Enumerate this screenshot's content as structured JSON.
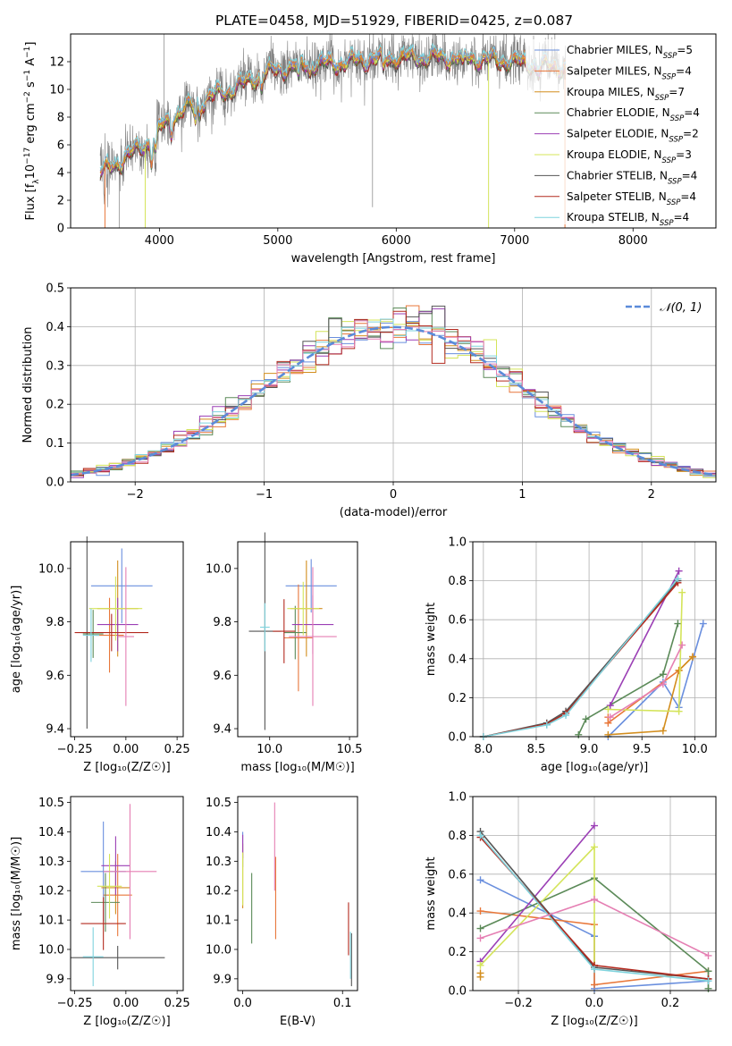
{
  "title": "PLATE=0458, MJD=51929, FIBERID=0425, z=0.087",
  "colors": {
    "axis": "#000000",
    "grid": "#b0b0b0",
    "spec_data": "#808080",
    "normal_curve": "#5b8bd9"
  },
  "series": [
    {
      "label": "Chabrier MILES, N",
      "sub": "SSP",
      "n": "5",
      "color": "#6a8fde"
    },
    {
      "label": "Salpeter MILES, N",
      "sub": "SSP",
      "n": "4",
      "color": "#e8773a"
    },
    {
      "label": "Kroupa MILES, N",
      "sub": "SSP",
      "n": "7",
      "color": "#d38e1e"
    },
    {
      "label": "Chabrier ELODIE, N",
      "sub": "SSP",
      "n": "4",
      "color": "#5b8a58"
    },
    {
      "label": "Salpeter ELODIE, N",
      "sub": "SSP",
      "n": "2",
      "color": "#9b3fb5"
    },
    {
      "label": "Kroupa ELODIE, N",
      "sub": "SSP",
      "n": "3",
      "color": "#d4e45a"
    },
    {
      "label": "Chabrier STELIB, N",
      "sub": "SSP",
      "n": "4",
      "color": "#555555"
    },
    {
      "label": "Salpeter STELIB, N",
      "sub": "SSP",
      "n": "4",
      "color": "#b32a1f"
    },
    {
      "label": "Kroupa STELIB, N",
      "sub": "SSP",
      "n": "4",
      "color": "#7fd3dd"
    }
  ],
  "extra_colors": {
    "pink": "#e57fb3"
  },
  "chart_data": [
    {
      "id": "spectrum",
      "type": "line",
      "xlabel": "wavelength [Angstrom, rest frame]",
      "ylabel_main": "Flux [f",
      "ylabel_rest": "10",
      "ylabel_unit": " erg cm",
      "ylabel_unit2": " s",
      "ylabel_unit3": " A",
      "xlim": [
        3250,
        8700
      ],
      "ylim": [
        0,
        14
      ],
      "xticks": [
        "4000",
        "5000",
        "6000",
        "7000",
        "8000"
      ],
      "yticks": [
        "0",
        "2",
        "4",
        "6",
        "8",
        "10",
        "12"
      ],
      "continuum": [
        [
          3500,
          4.0
        ],
        [
          3700,
          5.0
        ],
        [
          3900,
          6.2
        ],
        [
          4100,
          8.0
        ],
        [
          4300,
          9.0
        ],
        [
          4600,
          10.0
        ],
        [
          4900,
          11.2
        ],
        [
          5200,
          11.8
        ],
        [
          5500,
          11.9
        ],
        [
          5800,
          12.2
        ],
        [
          6100,
          12.3
        ],
        [
          6400,
          12.3
        ],
        [
          6700,
          12.2
        ],
        [
          7000,
          12.0
        ],
        [
          7200,
          11.8
        ],
        [
          7430,
          11.6
        ]
      ]
    },
    {
      "id": "residuals",
      "type": "histogram",
      "xlabel": "(data-model)/error",
      "ylabel": "Normed distribution",
      "xlim": [
        -2.5,
        2.5
      ],
      "ylim": [
        0,
        0.5
      ],
      "xticks": [
        "−2",
        "−1",
        "0",
        "1",
        "2"
      ],
      "yticks": [
        "0.0",
        "0.1",
        "0.2",
        "0.3",
        "0.4",
        "0.5"
      ],
      "legend": "𝒩(0, 1)",
      "bin_width": 0.1
    },
    {
      "id": "age_vs_Z",
      "type": "scatter",
      "xlabel": "Z [log₁₀(Z/Z☉)]",
      "ylabel": "age  [log₁₀(age/yr)]",
      "xlim": [
        -0.27,
        0.28
      ],
      "ylim": [
        9.37,
        10.1
      ],
      "xticks": [
        "−0.25",
        "0.00",
        "0.25"
      ],
      "yticks": [
        "9.4",
        "9.6",
        "9.8",
        "10.0"
      ],
      "points": [
        {
          "x": -0.02,
          "y": 9.935,
          "xerr": 0.15,
          "yerr": 0.14
        },
        {
          "x": -0.08,
          "y": 9.75,
          "xerr": 0.07,
          "yerr": 0.14
        },
        {
          "x": -0.04,
          "y": 9.85,
          "xerr": 0.1,
          "yerr": 0.18
        },
        {
          "x": -0.16,
          "y": 9.755,
          "xerr": 0.05,
          "yerr": 0.09
        },
        {
          "x": -0.04,
          "y": 9.79,
          "xerr": 0.1,
          "yerr": 0.1
        },
        {
          "x": -0.05,
          "y": 9.85,
          "xerr": 0.13,
          "yerr": 0.12
        },
        {
          "x": -0.19,
          "y": 9.76,
          "xerr": 0.03,
          "yerr": 0.36
        },
        {
          "x": -0.07,
          "y": 9.76,
          "xerr": 0.18,
          "yerr": 0.07
        },
        {
          "x": -0.17,
          "y": 9.75,
          "xerr": 0.04,
          "yerr": 0.1
        },
        {
          "x": 0.0,
          "y": 9.745,
          "xerr": 0.04,
          "yerr": 0.26
        }
      ]
    },
    {
      "id": "age_vs_mass",
      "type": "scatter",
      "xlabel": "mass [log₁₀(M/M☉)]",
      "ylabel": "",
      "xlim": [
        9.8,
        10.55
      ],
      "ylim": [
        9.37,
        10.1
      ],
      "xticks": [
        "10.0",
        "10.5"
      ],
      "yticks": [
        "9.4",
        "9.6",
        "9.8",
        "10.0"
      ],
      "points": [
        {
          "x": 10.26,
          "y": 9.935,
          "xerr": 0.16,
          "yerr": 0.1
        },
        {
          "x": 10.18,
          "y": 9.74,
          "xerr": 0.09,
          "yerr": 0.2
        },
        {
          "x": 10.23,
          "y": 9.85,
          "xerr": 0.1,
          "yerr": 0.18
        },
        {
          "x": 10.16,
          "y": 9.76,
          "xerr": 0.07,
          "yerr": 0.1
        },
        {
          "x": 10.27,
          "y": 9.79,
          "xerr": 0.13,
          "yerr": 0.11
        },
        {
          "x": 10.21,
          "y": 9.85,
          "xerr": 0.1,
          "yerr": 0.1
        },
        {
          "x": 9.97,
          "y": 9.765,
          "xerr": 0.1,
          "yerr": 0.37
        },
        {
          "x": 10.09,
          "y": 9.765,
          "xerr": 0.07,
          "yerr": 0.12
        },
        {
          "x": 9.97,
          "y": 9.78,
          "xerr": 0.03,
          "yerr": 0.09
        },
        {
          "x": 10.27,
          "y": 9.745,
          "xerr": 0.15,
          "yerr": 0.26
        }
      ]
    },
    {
      "id": "weight_vs_age",
      "type": "line",
      "xlabel": "age  [log₁₀(age/yr)]",
      "ylabel": "mass weight",
      "xlim": [
        7.9,
        10.2
      ],
      "ylim": [
        0,
        1.0
      ],
      "xticks": [
        "8.0",
        "8.5",
        "9.0",
        "9.5",
        "10.0"
      ],
      "yticks": [
        "0.0",
        "0.2",
        "0.4",
        "0.6",
        "0.8",
        "1.0"
      ],
      "series": [
        {
          "color": "#6a8fde",
          "x": [
            9.18,
            9.7,
            9.85,
            10.08
          ],
          "y": [
            0.0,
            0.28,
            0.15,
            0.58
          ]
        },
        {
          "color": "#e8773a",
          "x": [
            9.18,
            9.18,
            9.85,
            9.98
          ],
          "y": [
            0.1,
            0.07,
            0.34,
            0.41
          ]
        },
        {
          "color": "#d38e1e",
          "x": [
            9.18,
            9.7,
            9.85,
            9.98
          ],
          "y": [
            0.01,
            0.03,
            0.34,
            0.41
          ]
        },
        {
          "color": "#5b8a58",
          "x": [
            8.9,
            8.97,
            9.7,
            9.84
          ],
          "y": [
            0.01,
            0.09,
            0.32,
            0.58
          ]
        },
        {
          "color": "#9b3fb5",
          "x": [
            9.2,
            9.85
          ],
          "y": [
            0.16,
            0.85
          ]
        },
        {
          "color": "#d4e45a",
          "x": [
            9.18,
            9.85,
            9.88
          ],
          "y": [
            0.14,
            0.13,
            0.74
          ]
        },
        {
          "color": "#555555",
          "x": [
            8.0,
            8.6,
            8.78,
            9.84
          ],
          "y": [
            0.0,
            0.07,
            0.13,
            0.8
          ]
        },
        {
          "color": "#b32a1f",
          "x": [
            8.0,
            8.6,
            8.78,
            9.84
          ],
          "y": [
            0.0,
            0.065,
            0.12,
            0.79
          ]
        },
        {
          "color": "#7fd3dd",
          "x": [
            8.0,
            8.6,
            8.78,
            9.84
          ],
          "y": [
            0.0,
            0.06,
            0.11,
            0.81
          ]
        },
        {
          "color": "#e57fb3",
          "x": [
            9.2,
            9.7,
            9.88
          ],
          "y": [
            0.1,
            0.27,
            0.47
          ]
        }
      ]
    },
    {
      "id": "mass_vs_Z",
      "type": "scatter",
      "xlabel": "Z [log₁₀(Z/Z☉)]",
      "ylabel": "mass [log₁₀(M/M☉)]",
      "xlim": [
        -0.27,
        0.28
      ],
      "ylim": [
        9.86,
        10.52
      ],
      "xticks": [
        "−0.25",
        "0.00",
        "0.25"
      ],
      "yticks": [
        "9.9",
        "10.0",
        "10.1",
        "10.2",
        "10.3",
        "10.4",
        "10.5"
      ],
      "points": [
        {
          "x": -0.11,
          "y": 10.265,
          "xerr": 0.11,
          "yerr": 0.17
        },
        {
          "x": -0.04,
          "y": 10.185,
          "xerr": 0.07,
          "yerr": 0.14
        },
        {
          "x": -0.05,
          "y": 10.21,
          "xerr": 0.07,
          "yerr": 0.09
        },
        {
          "x": -0.1,
          "y": 10.16,
          "xerr": 0.07,
          "yerr": 0.1
        },
        {
          "x": -0.05,
          "y": 10.285,
          "xerr": 0.07,
          "yerr": 0.1
        },
        {
          "x": -0.08,
          "y": 10.215,
          "xerr": 0.06,
          "yerr": 0.11
        },
        {
          "x": -0.04,
          "y": 9.972,
          "xerr": 0.23,
          "yerr": 0.04
        },
        {
          "x": -0.11,
          "y": 10.088,
          "xerr": 0.11,
          "yerr": 0.09
        },
        {
          "x": -0.16,
          "y": 9.975,
          "xerr": 0.05,
          "yerr": 0.1
        },
        {
          "x": 0.02,
          "y": 10.265,
          "xerr": 0.13,
          "yerr": 0.23
        }
      ]
    },
    {
      "id": "mass_vs_EBV",
      "type": "scatter",
      "xlabel": "E(B-V)",
      "ylabel": "",
      "xlim": [
        -0.005,
        0.115
      ],
      "ylim": [
        9.86,
        10.52
      ],
      "xticks": [
        "0.0",
        "0.1"
      ],
      "yticks": [
        "9.9",
        "10.0",
        "10.1",
        "10.2",
        "10.3",
        "10.4",
        "10.5"
      ],
      "points": [
        {
          "x": 0.0,
          "y": 10.34,
          "xerr": 0,
          "yerr": 0.06
        },
        {
          "x": 0.033,
          "y": 10.175,
          "xerr": 0,
          "yerr": 0.14
        },
        {
          "x": 0.0,
          "y": 10.25,
          "xerr": 0,
          "yerr": 0.11
        },
        {
          "x": 0.009,
          "y": 10.14,
          "xerr": 0,
          "yerr": 0.12
        },
        {
          "x": 0.0,
          "y": 10.35,
          "xerr": 0,
          "yerr": 0.04
        },
        {
          "x": 0.0,
          "y": 10.24,
          "xerr": 0,
          "yerr": 0.09
        },
        {
          "x": 0.109,
          "y": 9.965,
          "xerr": 0,
          "yerr": 0.09
        },
        {
          "x": 0.106,
          "y": 10.07,
          "xerr": 0,
          "yerr": 0.09
        },
        {
          "x": 0.108,
          "y": 9.98,
          "xerr": 0,
          "yerr": 0.08
        },
        {
          "x": 0.032,
          "y": 10.35,
          "xerr": 0,
          "yerr": 0.15
        }
      ]
    },
    {
      "id": "weight_vs_Z",
      "type": "line",
      "xlabel": "Z [log₁₀(Z/Z☉)]",
      "ylabel": "mass weight",
      "xlim": [
        -0.32,
        0.32
      ],
      "ylim": [
        0,
        1.0
      ],
      "xticks": [
        "−0.2",
        "0.0",
        "0.2"
      ],
      "yticks": [
        "0.0",
        "0.2",
        "0.4",
        "0.6",
        "0.8",
        "1.0"
      ],
      "series": [
        {
          "color": "#6a8fde",
          "x": [
            -0.3,
            0.0,
            0.0,
            0.3
          ],
          "y": [
            0.57,
            0.28,
            0.01,
            0.05
          ]
        },
        {
          "color": "#e8773a",
          "x": [
            -0.3,
            0.0,
            0.0,
            0.3
          ],
          "y": [
            0.41,
            0.34,
            0.03,
            0.1
          ]
        },
        {
          "color": "#d38e1e",
          "x": [
            -0.3,
            -0.3
          ],
          "y": [
            0.07,
            0.09
          ]
        },
        {
          "color": "#5b8a58",
          "x": [
            -0.3,
            0.0,
            0.3,
            0.3
          ],
          "y": [
            0.32,
            0.58,
            0.1,
            0.01
          ]
        },
        {
          "color": "#9b3fb5",
          "x": [
            -0.3,
            0.0
          ],
          "y": [
            0.15,
            0.85
          ]
        },
        {
          "color": "#d4e45a",
          "x": [
            -0.3,
            0.0,
            0.0
          ],
          "y": [
            0.13,
            0.74,
            0.13
          ]
        },
        {
          "color": "#555555",
          "x": [
            -0.3,
            0.0,
            0.3
          ],
          "y": [
            0.82,
            0.12,
            0.06
          ]
        },
        {
          "color": "#b32a1f",
          "x": [
            -0.3,
            0.0,
            0.3
          ],
          "y": [
            0.79,
            0.13,
            0.06
          ]
        },
        {
          "color": "#7fd3dd",
          "x": [
            -0.3,
            0.0,
            0.3
          ],
          "y": [
            0.8,
            0.11,
            0.05
          ]
        },
        {
          "color": "#e57fb3",
          "x": [
            -0.3,
            0.0,
            0.3
          ],
          "y": [
            0.27,
            0.47,
            0.18
          ]
        }
      ]
    }
  ]
}
